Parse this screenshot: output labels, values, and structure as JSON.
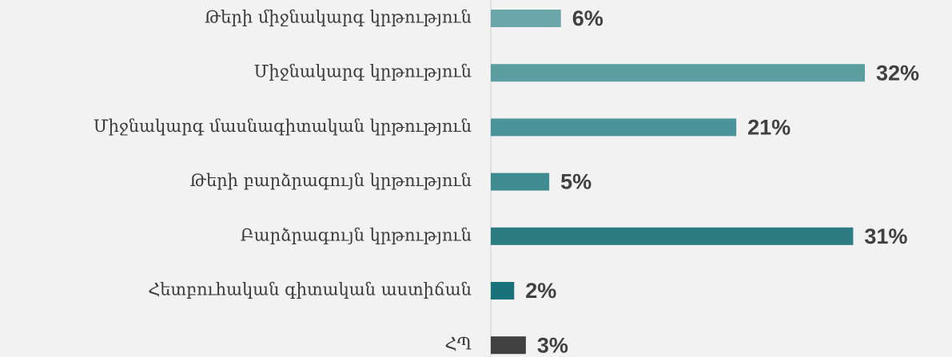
{
  "chart_data": {
    "type": "barh",
    "categories": [
      "Թերի միջնակարգ կրթություն",
      "Միջնակարգ կրթություն",
      "Միջնակարգ մասնագիտական կրթություն",
      "Թերի բարձրագույն կրթություն",
      "Բարձրագույն կրթություն",
      "Հետբուհական գիտական աստիճան",
      "ՀՊ"
    ],
    "values": [
      6,
      32,
      21,
      5,
      31,
      2,
      3
    ],
    "value_labels": [
      "6%",
      "32%",
      "21%",
      "5%",
      "31%",
      "2%",
      "3%"
    ],
    "colors": [
      "#6aa6aa",
      "#5b9ea2",
      "#4b959a",
      "#3e8b90",
      "#2c7d82",
      "#17727a",
      "#404040"
    ]
  }
}
